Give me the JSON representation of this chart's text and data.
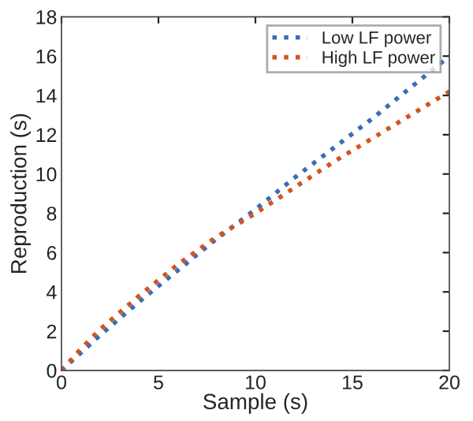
{
  "chart_data": {
    "type": "line",
    "xlabel": "Sample (s)",
    "ylabel": "Reproduction (s)",
    "x": [
      0,
      1,
      2,
      4,
      6,
      8,
      10,
      12,
      14,
      16,
      18,
      20
    ],
    "series": [
      {
        "name": "Low LF power",
        "color": "#3b6db3",
        "values": [
          0,
          0.9,
          1.8,
          3.5,
          5.1,
          6.7,
          8.2,
          9.8,
          11.3,
          12.8,
          14.4,
          16.0
        ]
      },
      {
        "name": "High LF power",
        "color": "#d4541f",
        "values": [
          0,
          1.1,
          2.1,
          3.8,
          5.4,
          6.8,
          8.0,
          9.3,
          10.6,
          11.8,
          13.0,
          14.2
        ]
      }
    ],
    "xlim": [
      0,
      20
    ],
    "xticks": [
      0,
      5,
      10,
      15,
      20
    ],
    "ylim": [
      0,
      18
    ],
    "yticks": [
      0,
      2,
      4,
      6,
      8,
      10,
      12,
      14,
      16,
      18
    ],
    "grid": false,
    "legend": "top right",
    "line_style": "dotted",
    "marker": "none"
  }
}
